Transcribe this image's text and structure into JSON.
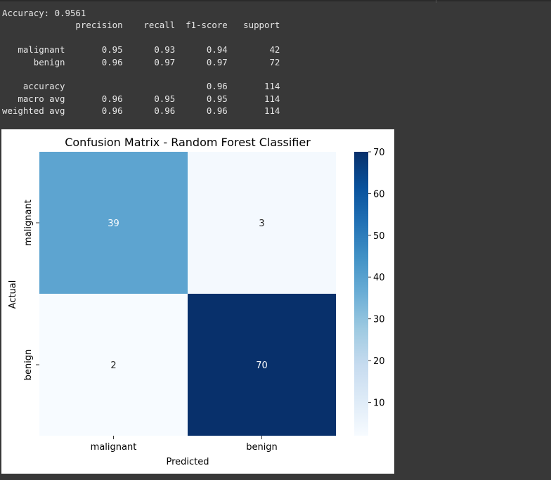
{
  "console": {
    "lines": [
      "Accuracy: 0.9561",
      "              precision    recall  f1-score   support",
      "",
      "   malignant       0.95      0.93      0.94        42",
      "      benign       0.96      0.97      0.97        72",
      "",
      "    accuracy                           0.96       114",
      "   macro avg       0.96      0.95      0.95       114",
      "weighted avg       0.96      0.96      0.96       114"
    ]
  },
  "chart_data": {
    "type": "heatmap",
    "title": "Confusion Matrix - Random Forest Classifier",
    "xlabel": "Predicted",
    "ylabel": "Actual",
    "x_categories": [
      "malignant",
      "benign"
    ],
    "y_categories": [
      "malignant",
      "benign"
    ],
    "values": [
      [
        39,
        3
      ],
      [
        2,
        70
      ]
    ],
    "colormap": "Blues",
    "colorbar": {
      "min": 2,
      "max": 70,
      "ticks": [
        10,
        20,
        30,
        40,
        50,
        60,
        70
      ],
      "tick_labels": [
        "10",
        "20",
        "30",
        "40",
        "50",
        "60",
        "70"
      ]
    },
    "annotate": true,
    "colors": {
      "low": "#f7fbff",
      "high": "#08306b"
    }
  }
}
